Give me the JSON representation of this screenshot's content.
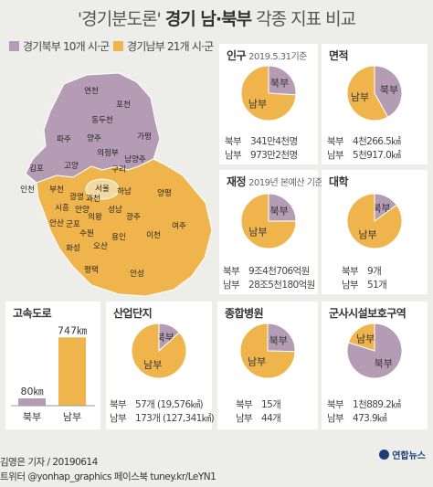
{
  "header": {
    "title_prefix": "'경기분도론'",
    "title_main": "경기 남·북부",
    "title_suffix": "각종 지표 비교"
  },
  "legend": {
    "north": "경기북부 10개 시·군",
    "south": "경기남부 21개 시·군"
  },
  "colors": {
    "north": "#b49cb4",
    "south": "#efb44b",
    "card": "#ffffff",
    "background": "#ededea"
  },
  "map": {
    "cities_north": [
      "연천",
      "포천",
      "동두천",
      "파주",
      "양주",
      "의정부",
      "가평",
      "남양주",
      "구리",
      "고양",
      "김포"
    ],
    "cities_south": [
      "부천",
      "서울",
      "광명",
      "과천",
      "하남",
      "양평",
      "인천",
      "시흥",
      "안양",
      "의왕",
      "성남",
      "광주",
      "안산",
      "군포",
      "여주",
      "수원",
      "용인",
      "이천",
      "화성",
      "오산",
      "평택",
      "안성"
    ]
  },
  "footer": {
    "credit": "김영은 기자 / 20190614",
    "sns": "트위터 @yonhap_graphics  페이스북 tuney.kr/LeYN1",
    "logo": "연합뉴스"
  },
  "chart_data": [
    {
      "type": "pie",
      "title": "인구",
      "note": "2019.5.31기준",
      "series": [
        {
          "name": "북부",
          "value": 341.4,
          "label": "341만4천명"
        },
        {
          "name": "남부",
          "value": 973.2,
          "label": "973만2천명"
        }
      ]
    },
    {
      "type": "pie",
      "title": "면적",
      "note": "",
      "series": [
        {
          "name": "북부",
          "value": 4266.5,
          "label": "4천266.5㎢"
        },
        {
          "name": "남부",
          "value": 5917.0,
          "label": "5천917.0㎢"
        }
      ]
    },
    {
      "type": "pie",
      "title": "재정",
      "note": "2019년 본예산 기준",
      "series": [
        {
          "name": "북부",
          "value": 94706,
          "label": "9조4천706억원"
        },
        {
          "name": "남부",
          "value": 285180,
          "label": "28조5천180억원"
        }
      ]
    },
    {
      "type": "pie",
      "title": "대학",
      "note": "",
      "series": [
        {
          "name": "북부",
          "value": 9,
          "label": "9개"
        },
        {
          "name": "남부",
          "value": 51,
          "label": "51개"
        }
      ]
    },
    {
      "type": "bar",
      "title": "고속도로",
      "categories": [
        "북부",
        "남부"
      ],
      "values": [
        80,
        747
      ],
      "labels": [
        "80㎞",
        "747㎞"
      ],
      "ylim": [
        0,
        800
      ]
    },
    {
      "type": "pie",
      "title": "산업단지",
      "note": "",
      "series": [
        {
          "name": "북부",
          "value": 19576,
          "label": "57개 (19,576㎢)"
        },
        {
          "name": "남부",
          "value": 127341,
          "label": "173개 (127,341㎢)"
        }
      ]
    },
    {
      "type": "pie",
      "title": "종합병원",
      "note": "",
      "series": [
        {
          "name": "북부",
          "value": 15,
          "label": "15개"
        },
        {
          "name": "남부",
          "value": 44,
          "label": "44개"
        }
      ]
    },
    {
      "type": "pie",
      "title": "군사시설보호구역",
      "note": "",
      "series": [
        {
          "name": "북부",
          "value": 1889.2,
          "label": "1천889.2㎢"
        },
        {
          "name": "남부",
          "value": 473.9,
          "label": "473.9㎢"
        }
      ]
    }
  ]
}
